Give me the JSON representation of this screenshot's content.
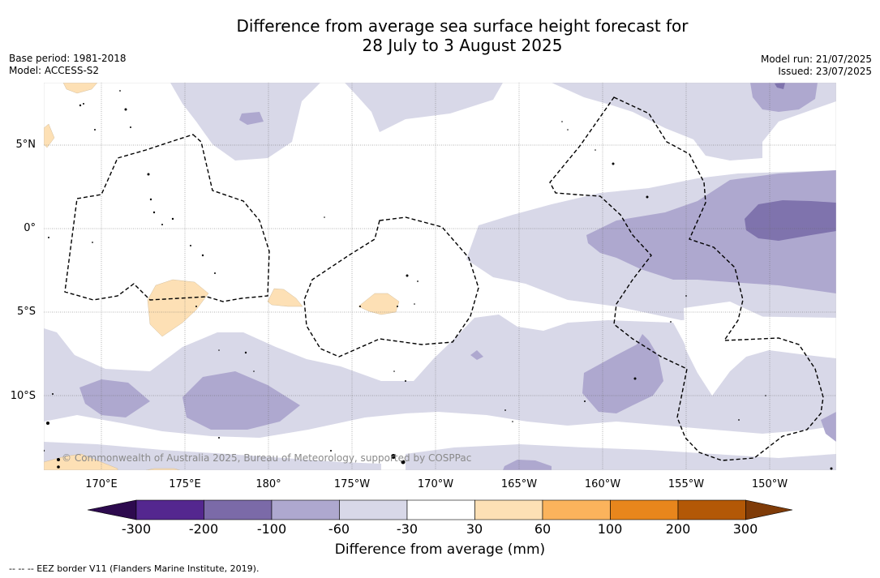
{
  "title": {
    "line1": "Difference from average sea surface height forecast for",
    "line2": "28 July to 3 August 2025"
  },
  "meta_left": {
    "base_period": "Base period: 1981-2018",
    "model": "Model: ACCESS-S2"
  },
  "meta_right": {
    "model_run": "Model run: 21/07/2025",
    "issued": "Issued: 23/07/2025"
  },
  "credit": "© Commonwealth of Australia 2025, Bureau of Meteorology, supported by COSPPac",
  "longitude_labels": [
    "170°E",
    "175°E",
    "180°",
    "175°W",
    "170°W",
    "165°W",
    "160°W",
    "155°W",
    "150°W"
  ],
  "latitude_labels": [
    "5°N",
    "0°",
    "5°S",
    "10°S"
  ],
  "colorbar": {
    "title": "Difference from average (mm)",
    "tick_labels": [
      "-300",
      "-200",
      "-100",
      "-60",
      "-30",
      "30",
      "60",
      "100",
      "200",
      "300"
    ],
    "colors": {
      "below_min": "#2d0a4e",
      "b1": "#54278f",
      "b2": "#7b6aa8",
      "b3": "#aea8cf",
      "b4": "#d8d8e8",
      "b5": "#ffffff",
      "b6": "#fde0b5",
      "b7": "#fbb35c",
      "b8": "#e8861c",
      "b9": "#b35806",
      "above_max": "#7f3b08"
    }
  },
  "legend_note": "--  --  -- EEZ border V11 (Flanders Marine Institute, 2019)."
}
